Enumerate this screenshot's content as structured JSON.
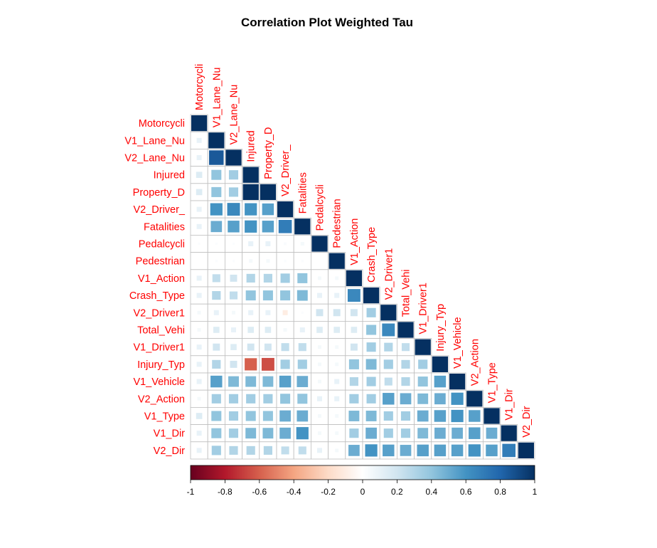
{
  "chart_data": {
    "type": "heatmap",
    "title": "Correlation Plot Weighted Tau",
    "method": "square",
    "matrix_shape": "lower-triangular",
    "variables": [
      "Motorcycli",
      "V1_Lane_Nu",
      "V2_Lane_Nu",
      "Injured",
      "Property_D",
      "V2_Driver_",
      "Fatalities",
      "Pedalcycli",
      "Pedestrian",
      "V1_Action",
      "Crash_Type",
      "V2_Driver1",
      "Total_Vehi",
      "V1_Driver1",
      "Injury_Typ",
      "V1_Vehicle",
      "V2_Action",
      "V1_Type",
      "V1_Dir",
      "V2_Dir"
    ],
    "values": [
      [
        1
      ],
      [
        0.1,
        1
      ],
      [
        0.1,
        0.85,
        1
      ],
      [
        0.15,
        0.4,
        0.35,
        1
      ],
      [
        0.15,
        0.4,
        0.35,
        1.0,
        1
      ],
      [
        0.1,
        0.6,
        0.65,
        0.6,
        0.55,
        1
      ],
      [
        0.1,
        0.5,
        0.55,
        0.6,
        0.55,
        0.7,
        1
      ],
      [
        0.02,
        0.02,
        0.02,
        0.1,
        0.1,
        0.03,
        0.05,
        1
      ],
      [
        0.0,
        0.02,
        0.02,
        0.05,
        0.05,
        0.02,
        0.02,
        0.0,
        1
      ],
      [
        0.1,
        0.25,
        0.2,
        0.3,
        0.3,
        0.35,
        0.4,
        0.05,
        0.05,
        1
      ],
      [
        0.1,
        0.3,
        0.25,
        0.4,
        0.4,
        0.4,
        0.45,
        0.1,
        0.1,
        0.65,
        1
      ],
      [
        0.05,
        0.1,
        0.05,
        0.1,
        0.1,
        -0.1,
        0.02,
        0.2,
        0.2,
        0.2,
        0.35,
        1
      ],
      [
        0.05,
        0.15,
        0.1,
        0.15,
        0.15,
        0.05,
        0.1,
        0.15,
        0.15,
        0.15,
        0.4,
        0.65,
        1
      ],
      [
        0.1,
        0.2,
        0.15,
        0.2,
        0.2,
        0.25,
        0.25,
        0.05,
        0.05,
        0.2,
        0.35,
        0.3,
        0.25,
        1
      ],
      [
        0.1,
        0.3,
        0.2,
        -0.6,
        -0.65,
        0.35,
        0.35,
        0.05,
        0.05,
        0.4,
        0.45,
        0.35,
        0.3,
        0.35,
        1
      ],
      [
        0.1,
        0.55,
        0.45,
        0.45,
        0.45,
        0.55,
        0.5,
        0.05,
        0.1,
        0.3,
        0.35,
        0.25,
        0.3,
        0.4,
        0.55,
        1
      ],
      [
        0.05,
        0.35,
        0.35,
        0.35,
        0.35,
        0.4,
        0.4,
        0.1,
        0.1,
        0.35,
        0.35,
        0.55,
        0.5,
        0.45,
        0.5,
        0.6,
        1
      ],
      [
        0.15,
        0.4,
        0.35,
        0.4,
        0.4,
        0.5,
        0.5,
        0.05,
        0.05,
        0.45,
        0.45,
        0.35,
        0.35,
        0.5,
        0.55,
        0.6,
        0.55,
        1
      ],
      [
        0.1,
        0.4,
        0.35,
        0.45,
        0.45,
        0.5,
        0.6,
        0.05,
        0.05,
        0.35,
        0.5,
        0.35,
        0.35,
        0.45,
        0.5,
        0.5,
        0.55,
        0.5,
        1
      ],
      [
        0.1,
        0.35,
        0.3,
        0.3,
        0.3,
        0.25,
        0.25,
        0.1,
        0.05,
        0.5,
        0.6,
        0.55,
        0.5,
        0.55,
        0.55,
        0.55,
        0.6,
        0.55,
        0.7,
        1
      ]
    ],
    "colorbar": {
      "ticks": [
        "-1",
        "-0.8",
        "-0.6",
        "-0.4",
        "-0.2",
        "0",
        "0.2",
        "0.4",
        "0.6",
        "0.8",
        "1"
      ],
      "range": [
        -1,
        1
      ],
      "stops": [
        "#67001F",
        "#B2182B",
        "#D6604D",
        "#F4A582",
        "#FDDBC7",
        "#FFFFFF",
        "#D1E5F0",
        "#92C5DE",
        "#4393C3",
        "#2166AC",
        "#053061"
      ]
    },
    "colors": {
      "label": "#FF0000",
      "grid": "#BEBEBE",
      "title": "#000000"
    }
  }
}
